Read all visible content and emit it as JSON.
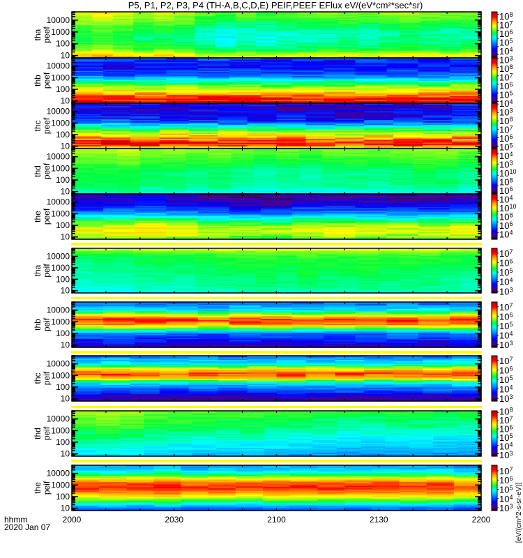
{
  "chart_data": {
    "type": "heatmap",
    "title": "P5, P1, P2, P3, P4 (TH-A,B,C,D,E) PEIF,PEEF EFlux eV/(eV*cm²*sec*sr)",
    "xlabel_units": "hhmm",
    "date_label": "2020 Jan 07",
    "x_ticks": [
      {
        "label": "2000",
        "minutes": 0
      },
      {
        "label": "2030",
        "minutes": 30
      },
      {
        "label": "2100",
        "minutes": 60
      },
      {
        "label": "2130",
        "minutes": 90
      },
      {
        "label": "2200",
        "minutes": 120
      }
    ],
    "x_range_minutes": [
      0,
      120
    ],
    "y_scale": "log",
    "y_range_log10_eV": [
      0.8,
      4.7
    ],
    "y_tick_labels": [
      "10",
      "100",
      "1000",
      "10000"
    ],
    "profile_energy_log10": [
      0.8,
      1.0,
      1.3,
      1.6,
      2.0,
      2.4,
      2.8,
      3.2,
      3.6,
      4.0,
      4.4,
      4.7
    ],
    "colorbar_unit_label": "[eV/(cm^2-s-sr-eV)]",
    "panels": [
      {
        "probe": "tha",
        "species": "peef",
        "ncols": 20,
        "cbar_log10": [
          2.6,
          8.3
        ],
        "cbar_labels": [
          "3",
          "4",
          "5",
          "6",
          "7",
          "8"
        ],
        "profile_level": [
          0.78,
          0.76,
          0.68,
          0.6,
          0.57,
          0.55,
          0.55,
          0.57,
          0.6,
          0.64,
          0.67,
          0.69
        ],
        "column_offsets": [
          0,
          0.03,
          0,
          -0.03,
          -0.01,
          -0.03,
          -0.08,
          -0.1,
          -0.08,
          -0.09,
          -0.07,
          -0.07,
          -0.06,
          -0.05,
          -0.07,
          -0.05,
          -0.04,
          -0.05,
          -0.06,
          -0.05
        ],
        "jitter": 0.03
      },
      {
        "probe": "thb",
        "species": "peef",
        "ncols": 13,
        "cbar_log10": [
          2.8,
          8.1
        ],
        "cbar_labels": [
          "3",
          "4",
          "5",
          "6",
          "7",
          "8"
        ],
        "profile_level": [
          0.9,
          0.9,
          0.88,
          0.8,
          0.7,
          0.58,
          0.45,
          0.3,
          0.25,
          0.2,
          0.22,
          0.28
        ],
        "column_offsets": [
          0.02,
          0,
          0,
          0,
          0.01,
          0,
          0,
          -0.01,
          0,
          0,
          0,
          0,
          0.02
        ],
        "jitter": 0.06
      },
      {
        "probe": "thc",
        "species": "peef",
        "ncols": 14,
        "cbar_log10": [
          2.7,
          8.1
        ],
        "cbar_labels": [
          "3",
          "4",
          "5",
          "6",
          "7",
          "8"
        ],
        "profile_level": [
          0.3,
          0.85,
          0.9,
          0.82,
          0.72,
          0.58,
          0.42,
          0.25,
          0.2,
          0.17,
          0.15,
          0.2
        ],
        "column_offsets": [
          0.02,
          0.03,
          0,
          0,
          0,
          0,
          0,
          0,
          -0.02,
          -0.02,
          0,
          0,
          0,
          0.02
        ],
        "jitter": 0.08
      },
      {
        "probe": "thd",
        "species": "peef",
        "ncols": 18,
        "cbar_log10": [
          2.5,
          11
        ],
        "cbar_labels": [
          "4",
          "6",
          "8",
          "10"
        ],
        "profile_level": [
          0.47,
          0.47,
          0.5,
          0.52,
          0.53,
          0.52,
          0.53,
          0.55,
          0.58,
          0.6,
          0.62,
          0.64
        ],
        "column_offsets": [
          0.02,
          0.02,
          0.03,
          0,
          0,
          -0.01,
          0,
          -0.02,
          -0.03,
          -0.02,
          -0.03,
          -0.02,
          -0.01,
          -0.02,
          -0.01,
          0.01,
          0,
          -0.02
        ],
        "jitter": 0.02
      },
      {
        "probe": "the",
        "species": "peef",
        "ncols": 13,
        "cbar_log10": [
          2.8,
          11.2
        ],
        "cbar_labels": [
          "4",
          "6",
          "8",
          "10"
        ],
        "profile_level": [
          0.55,
          0.62,
          0.68,
          0.7,
          0.66,
          0.55,
          0.42,
          0.3,
          0.22,
          0.15,
          0.12,
          0.12
        ],
        "column_offsets": [
          0,
          0.02,
          0.03,
          0.01,
          -0.02,
          -0.04,
          -0.05,
          0,
          0,
          0,
          -0.02,
          -0.02,
          0
        ],
        "jitter": 0.05
      },
      {
        "probe": "tha",
        "species": "peif",
        "ncols": 20,
        "cbar_log10": [
          2.8,
          7.5
        ],
        "cbar_labels": [
          "3",
          "4",
          "5",
          "6",
          "7"
        ],
        "profile_level": [
          0.46,
          0.47,
          0.48,
          0.5,
          0.5,
          0.51,
          0.52,
          0.53,
          0.54,
          0.55,
          0.6,
          0.7
        ],
        "column_offsets": [
          -0.02,
          -0.01,
          -0.02,
          0,
          0,
          0,
          0.01,
          0.02,
          0.02,
          0.03,
          0.02,
          0.03,
          0.02,
          0.02,
          0.03,
          0.02,
          0.02,
          0.02,
          0.01,
          0
        ],
        "jitter": 0.02
      },
      {
        "probe": "thb",
        "species": "peif",
        "ncols": 13,
        "cbar_log10": [
          2.7,
          7.5
        ],
        "cbar_labels": [
          "3",
          "4",
          "5",
          "6",
          "7"
        ],
        "profile_level": [
          0.12,
          0.15,
          0.2,
          0.25,
          0.3,
          0.55,
          0.8,
          0.9,
          0.7,
          0.45,
          0.35,
          0.3
        ],
        "column_offsets": [
          0,
          0.02,
          0,
          -0.02,
          -0.03,
          0,
          0,
          -0.02,
          0,
          0,
          0,
          -0.01,
          0.01
        ],
        "jitter": 0.05
      },
      {
        "probe": "thc",
        "species": "peif",
        "ncols": 14,
        "cbar_log10": [
          2.7,
          7.5
        ],
        "cbar_labels": [
          "3",
          "4",
          "5",
          "6",
          "7"
        ],
        "profile_level": [
          0.12,
          0.1,
          0.15,
          0.25,
          0.32,
          0.45,
          0.75,
          0.88,
          0.72,
          0.45,
          0.38,
          0.3
        ],
        "column_offsets": [
          0,
          0,
          0,
          -0.02,
          0,
          -0.02,
          0,
          0.02,
          0,
          0,
          -0.01,
          0,
          0,
          0.02
        ],
        "jitter": 0.05
      },
      {
        "probe": "thd",
        "species": "peif",
        "ncols": 17,
        "cbar_log10": [
          2.7,
          8.2
        ],
        "cbar_labels": [
          "3",
          "4",
          "5",
          "6",
          "7",
          "8"
        ],
        "profile_level": [
          0.42,
          0.4,
          0.42,
          0.45,
          0.47,
          0.5,
          0.52,
          0.55,
          0.57,
          0.58,
          0.6,
          0.63
        ],
        "column_offsets": [
          0.02,
          0.03,
          0.02,
          0,
          -0.01,
          -0.02,
          -0.02,
          -0.02,
          -0.03,
          -0.04,
          -0.05,
          -0.06,
          -0.06,
          -0.05,
          -0.05,
          -0.06,
          -0.06
        ],
        "jitter": 0.03
      },
      {
        "probe": "the",
        "species": "peif",
        "ncols": 15,
        "cbar_log10": [
          2.7,
          7.6
        ],
        "cbar_labels": [
          "3",
          "4",
          "5",
          "6",
          "7"
        ],
        "profile_level": [
          0.25,
          0.3,
          0.4,
          0.55,
          0.7,
          0.82,
          0.88,
          0.85,
          0.7,
          0.5,
          0.4,
          0.35
        ],
        "column_offsets": [
          0,
          0,
          0,
          0.02,
          -0.02,
          0,
          -0.02,
          0,
          0,
          0,
          0,
          0.01,
          0,
          0,
          -0.04
        ],
        "jitter": 0.03
      }
    ]
  },
  "colors": {
    "separator": "#ffff00",
    "axis": "#000000"
  }
}
